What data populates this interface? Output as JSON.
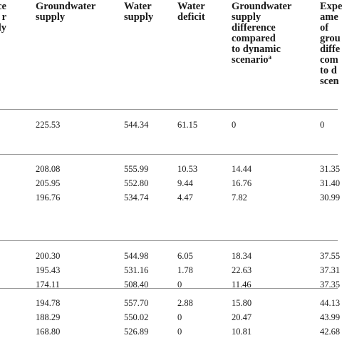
{
  "columns": [
    {
      "key": "col0",
      "lines": [
        "ce",
        "r",
        "ly"
      ],
      "sup": ""
    },
    {
      "key": "groundwater_supply",
      "lines": [
        "Groundwater",
        "supply"
      ],
      "sup": ""
    },
    {
      "key": "water_supply",
      "lines": [
        "Water",
        "supply"
      ],
      "sup": ""
    },
    {
      "key": "water_deficit",
      "lines": [
        "Water",
        "deficit"
      ],
      "sup": ""
    },
    {
      "key": "gw_difference",
      "lines": [
        "Groundwater",
        "supply",
        "difference",
        "compared",
        "to dynamic",
        "scenario"
      ],
      "sup": "a"
    },
    {
      "key": "exp_amount",
      "lines": [
        "Expe",
        "ame",
        "of",
        "grou",
        "diffe",
        "com",
        "to d",
        "scen"
      ],
      "sup": ""
    }
  ],
  "groups": [
    {
      "rows": [
        {
          "gw": "225.53",
          "ws": "544.34",
          "wd": "61.15",
          "diff": "0",
          "exp": "0"
        }
      ]
    },
    {
      "rows": [
        {
          "gw": "208.08",
          "ws": "555.99",
          "wd": "10.53",
          "diff": "14.44",
          "exp": "31.35"
        },
        {
          "gw": "205.95",
          "ws": "552.80",
          "wd": "9.44",
          "diff": "16.76",
          "exp": "31.40"
        },
        {
          "gw": "196.76",
          "ws": "534.74",
          "wd": "4.47",
          "diff": "7.82",
          "exp": "30.99"
        }
      ]
    },
    {
      "rows": [
        {
          "gw": "200.30",
          "ws": "544.98",
          "wd": "6.05",
          "diff": "18.34",
          "exp": "37.55"
        },
        {
          "gw": "195.43",
          "ws": "531.16",
          "wd": "1.78",
          "diff": "22.63",
          "exp": "37.31"
        },
        {
          "gw": "174.11",
          "ws": "508.40",
          "wd": "0",
          "diff": "11.46",
          "exp": "37.35"
        }
      ]
    },
    {
      "rows": [
        {
          "gw": "194.78",
          "ws": "557.70",
          "wd": "2.88",
          "diff": "15.80",
          "exp": "44.13"
        },
        {
          "gw": "188.29",
          "ws": "550.02",
          "wd": "0",
          "diff": "20.47",
          "exp": "43.99"
        },
        {
          "gw": "168.80",
          "ws": "526.89",
          "wd": "0",
          "diff": "10.81",
          "exp": "42.68"
        }
      ]
    }
  ]
}
